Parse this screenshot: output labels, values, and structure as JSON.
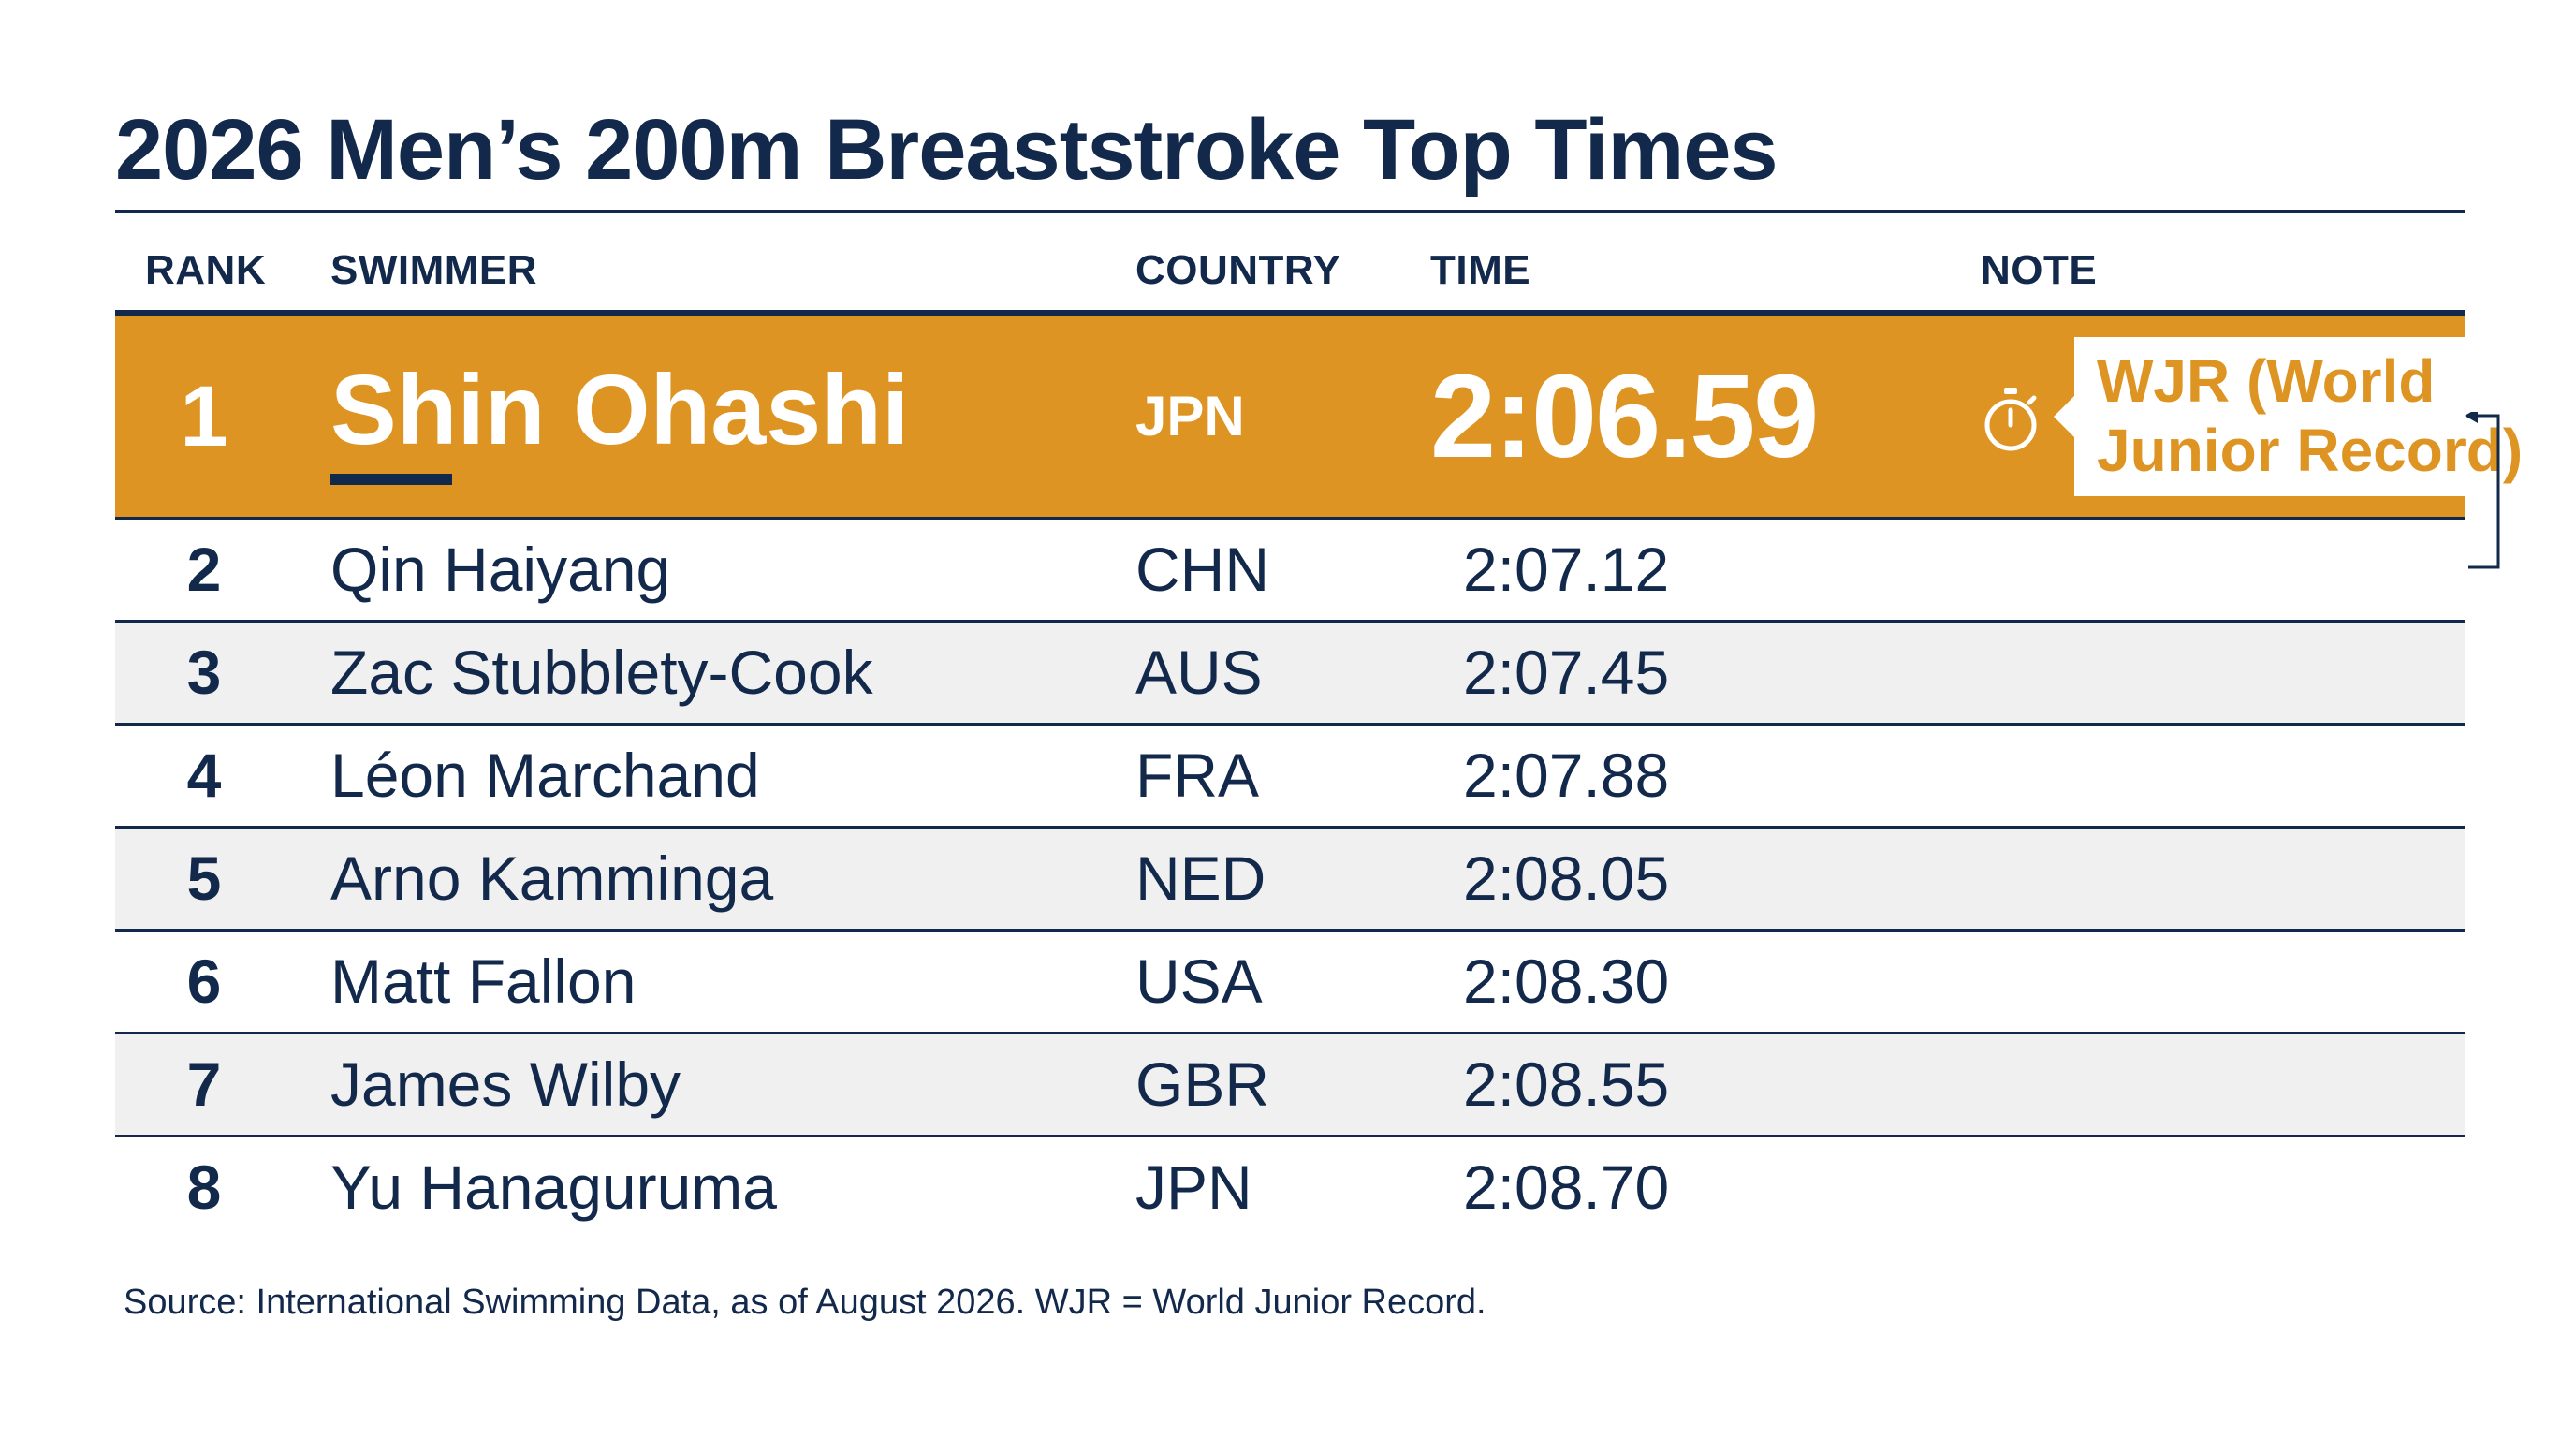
{
  "title": "2026 Men’s 200m Breaststroke Top Times",
  "columns": {
    "rank": "RANK",
    "swimmer": "SWIMMER",
    "country": "COUNTRY",
    "time": "TIME",
    "note": "NOTE"
  },
  "rows": [
    {
      "rank": "1",
      "swimmer": "Shin Ohashi",
      "country": "JPN",
      "time": "2:06.59",
      "note": "WJR (World Junior Record)",
      "highlight": true
    },
    {
      "rank": "2",
      "swimmer": "Qin Haiyang",
      "country": "CHN",
      "time": "2:07.12",
      "note": ""
    },
    {
      "rank": "3",
      "swimmer": "Zac Stubblety-Cook",
      "country": "AUS",
      "time": "2:07.45",
      "note": ""
    },
    {
      "rank": "4",
      "swimmer": "Léon Marchand",
      "country": "FRA",
      "time": "2:07.88",
      "note": ""
    },
    {
      "rank": "5",
      "swimmer": "Arno Kamminga",
      "country": "NED",
      "time": "2:08.05",
      "note": ""
    },
    {
      "rank": "6",
      "swimmer": "Matt Fallon",
      "country": "USA",
      "time": "2:08.30",
      "note": ""
    },
    {
      "rank": "7",
      "swimmer": "James Wilby",
      "country": "GBR",
      "time": "2:08.55",
      "note": ""
    },
    {
      "rank": "8",
      "swimmer": "Yu Hanaguruma",
      "country": "JPN",
      "time": "2:08.70",
      "note": ""
    }
  ],
  "source": "Source: International Swimming Data, as of August 2026. WJR = World Junior Record.",
  "icons": {
    "record_time": "stopwatch-icon"
  },
  "colors": {
    "navy": "#13294b",
    "highlight": "#de9422",
    "alt_row": "#f0f0f0"
  }
}
